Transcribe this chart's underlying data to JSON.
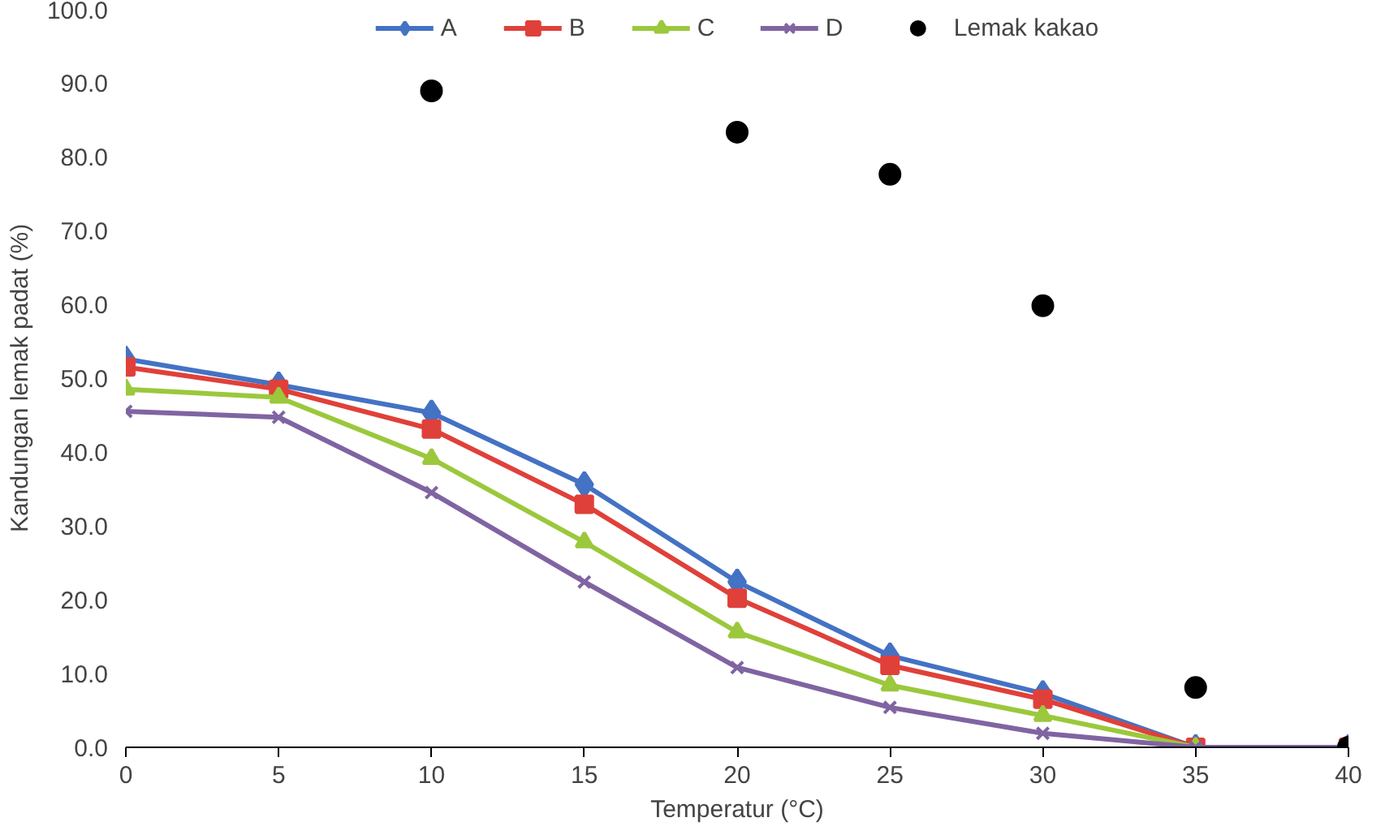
{
  "chart_data": {
    "type": "line",
    "xlabel": "Temperatur (°C)",
    "ylabel": "Kandungan lemak padat (%)",
    "x": [
      0,
      5,
      10,
      15,
      20,
      25,
      30,
      35,
      40
    ],
    "series": [
      {
        "name": "A",
        "color": "#4472c4",
        "marker": "diamond",
        "values": [
          52.6,
          49.1,
          45.3,
          35.6,
          22.4,
          12.4,
          7.3,
          0,
          0
        ]
      },
      {
        "name": "B",
        "color": "#e0403a",
        "marker": "square",
        "values": [
          51.5,
          48.5,
          43.1,
          32.9,
          20.2,
          11.1,
          6.5,
          0,
          0
        ]
      },
      {
        "name": "C",
        "color": "#9bc83c",
        "marker": "triangle",
        "values": [
          48.5,
          47.4,
          39.1,
          27.8,
          15.6,
          8.4,
          4.3,
          0,
          0
        ]
      },
      {
        "name": "D",
        "color": "#8064a2",
        "marker": "cross",
        "values": [
          45.5,
          44.7,
          34.5,
          22.4,
          10.8,
          5.4,
          1.9,
          0,
          0
        ]
      },
      {
        "name": "Lemak kakao",
        "type": "scatter",
        "color": "#000000",
        "marker": "circle",
        "x": [
          10,
          20,
          25,
          30,
          35,
          40
        ],
        "values": [
          88.9,
          83.3,
          77.6,
          59.8,
          8.1,
          0
        ]
      }
    ],
    "xlim": [
      0,
      40
    ],
    "xticks": [
      0,
      5,
      10,
      15,
      20,
      25,
      30,
      35,
      40
    ],
    "ylim": [
      0,
      100
    ],
    "yticks": [
      {
        "value": 0,
        "label": "0.0"
      },
      {
        "value": 10,
        "label": "10.0"
      },
      {
        "value": 20,
        "label": "20.0"
      },
      {
        "value": 30,
        "label": "30.0"
      },
      {
        "value": 40,
        "label": "40.0"
      },
      {
        "value": 50,
        "label": "50.0"
      },
      {
        "value": 60,
        "label": "60.0"
      },
      {
        "value": 70,
        "label": "70.0"
      },
      {
        "value": 80,
        "label": "80.0"
      },
      {
        "value": 90,
        "label": "90.0"
      },
      {
        "value": 100,
        "label": "100.0"
      }
    ],
    "grid": false,
    "legend": "top",
    "line_style": "solid"
  }
}
